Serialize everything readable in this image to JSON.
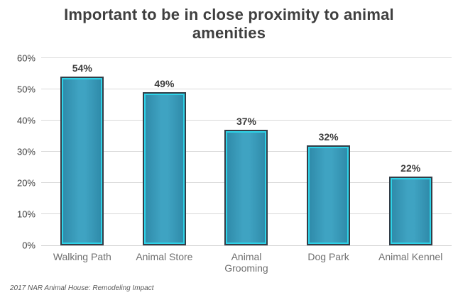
{
  "title": "Important to be in close proximity to animal amenities",
  "source_note": "2017 NAR Animal House: Remodeling Impact",
  "chart_data": {
    "type": "bar",
    "title": "Important to be in close proximity to animal amenities",
    "categories": [
      "Walking Path",
      "Animal Store",
      "Animal Grooming",
      "Dog Park",
      "Animal Kennel"
    ],
    "values": [
      54,
      49,
      37,
      32,
      22
    ],
    "value_labels": [
      "54%",
      "49%",
      "37%",
      "32%",
      "22%"
    ],
    "xlabel": "",
    "ylabel": "",
    "ylim": [
      0,
      60
    ],
    "y_tick_step": 10,
    "y_tick_labels": [
      "0%",
      "10%",
      "20%",
      "30%",
      "40%",
      "50%",
      "60%"
    ],
    "grid": true,
    "legend": false,
    "source_note": "2017 NAR Animal House: Remodeling Impact",
    "colors": {
      "bar_fill_edge": "#2e89a8",
      "bar_fill_center": "#3fa3c2",
      "bar_inner_stroke": "#2ed3e8",
      "bar_outer_stroke": "#333d47",
      "gridline": "#d9d9d9",
      "title_text": "#3f3f3f",
      "axis_text": "#3d3d3d",
      "category_text": "#6f6f6f",
      "source_text": "#595959"
    }
  }
}
